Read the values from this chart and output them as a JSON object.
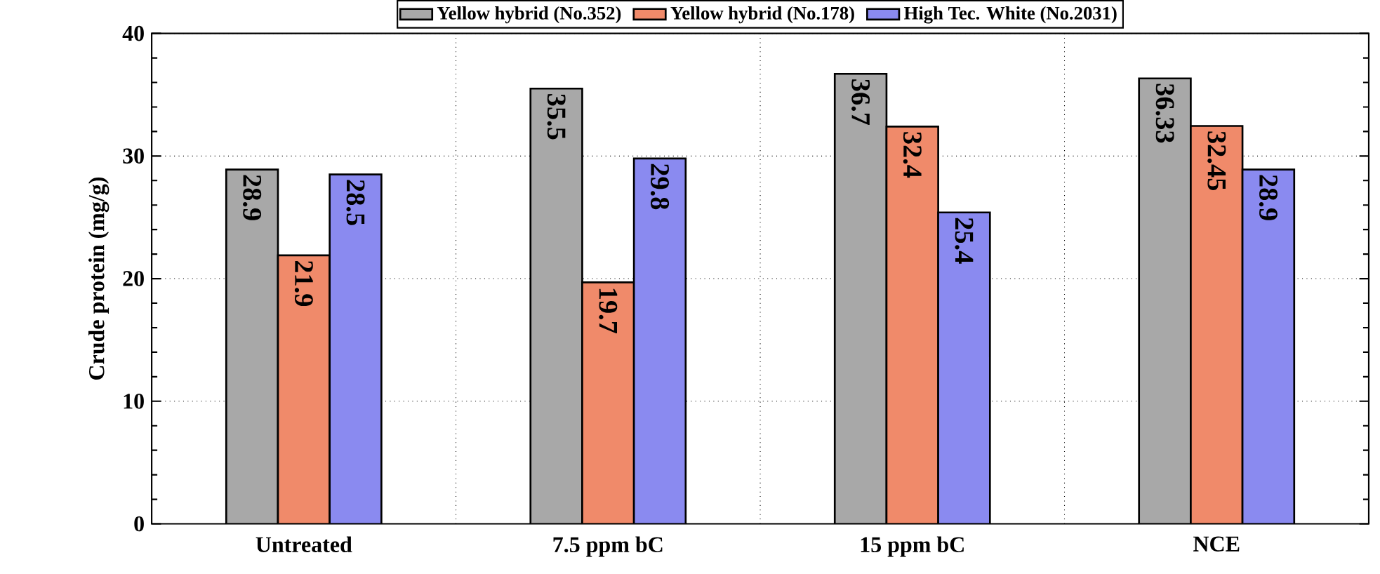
{
  "chart_data": {
    "type": "bar",
    "ylabel": "Crude protein (mg/g)",
    "categories": [
      "Untreated",
      "7.5 ppm bC",
      "15 ppm bC",
      "NCE"
    ],
    "series": [
      {
        "name": "Yellow hybrid (No.352)",
        "color": "#a8a8a8",
        "values": [
          28.9,
          35.5,
          36.7,
          36.33
        ]
      },
      {
        "name": "Yellow hybrid (No.178)",
        "color": "#f08a6a",
        "values": [
          21.9,
          19.7,
          32.4,
          32.45
        ]
      },
      {
        "name": "High Tec. White (No.2031)",
        "color": "#8a8af0",
        "values": [
          28.5,
          29.8,
          25.4,
          28.9
        ]
      }
    ],
    "ylim": [
      0,
      40
    ],
    "yticks": [
      0,
      10,
      20,
      30,
      40
    ],
    "grid": true,
    "legend": "top",
    "data_labels": true
  }
}
